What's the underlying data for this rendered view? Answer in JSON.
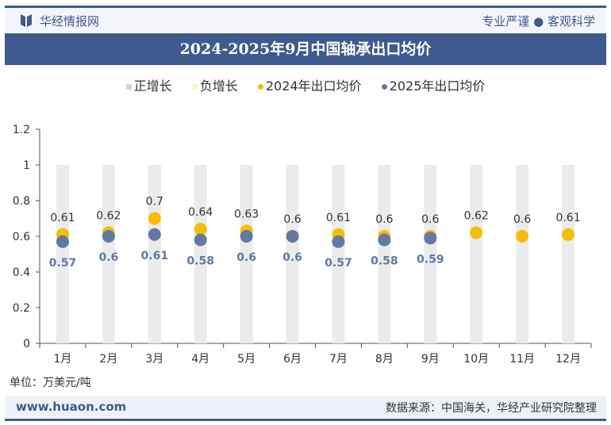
{
  "header": {
    "brand": "华经情报网",
    "slogan": "专业严谨 ● 客观科学"
  },
  "footer": {
    "unit": "单位：万美元/吨",
    "url": "www.huaon.com",
    "source": "数据来源：中国海关，华经产业研究院整理"
  },
  "colors": {
    "positive": "#cfd3dd",
    "negative": "#fdf3d0",
    "s2024": "#f7be00",
    "s2025": "#6478a4",
    "bar": "#ebebeb",
    "theme": "#3f5a8f"
  },
  "chart_data": {
    "type": "bar+scatter",
    "title": "2024-2025年9月中国轴承出口均价",
    "categories": [
      "1月",
      "2月",
      "3月",
      "4月",
      "5月",
      "6月",
      "7月",
      "8月",
      "9月",
      "10月",
      "11月",
      "12月"
    ],
    "ylim": [
      0,
      1.2
    ],
    "yticks": [
      "0",
      "0.2",
      "0.4",
      "0.6",
      "0.8",
      "1",
      "1.2"
    ],
    "legend": [
      "正增长",
      "负增长",
      "2024年出口均价",
      "2025年出口均价"
    ],
    "legend_position": "top",
    "bars": [
      1,
      1,
      1,
      1,
      1,
      1,
      1,
      1,
      1,
      1,
      1,
      1
    ],
    "series": [
      {
        "name": "2024年出口均价",
        "values": [
          0.61,
          0.62,
          0.7,
          0.64,
          0.63,
          0.6,
          0.61,
          0.6,
          0.6,
          0.62,
          0.6,
          0.61
        ]
      },
      {
        "name": "2025年出口均价",
        "values": [
          0.57,
          0.6,
          0.61,
          0.58,
          0.6,
          0.6,
          0.57,
          0.58,
          0.59,
          null,
          null,
          null
        ]
      }
    ]
  }
}
